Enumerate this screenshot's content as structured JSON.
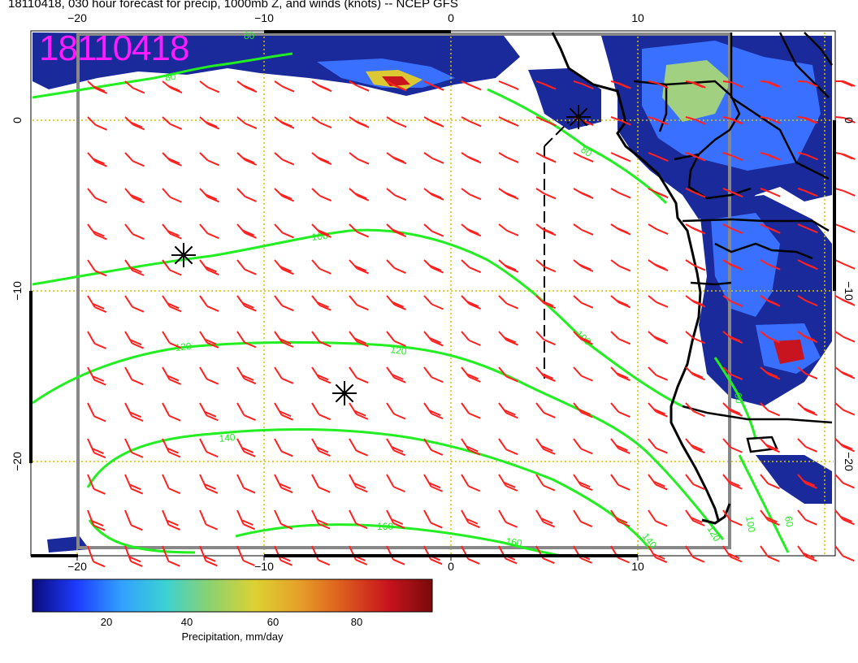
{
  "title": "18110418, 030 hour forecast for precip, 1000mb Z, and winds (knots) -- NCEP GFS",
  "date_stamp": "18110418",
  "map": {
    "lon_range": [
      -22.5,
      20.5
    ],
    "lat_range": [
      -25.5,
      5.2
    ],
    "lon_ticks": [
      -20,
      -10,
      0,
      10
    ],
    "lon_tick_labels": [
      "−20",
      "−10",
      "0",
      "10"
    ],
    "lat_ticks": [
      0,
      -10,
      -20
    ],
    "lat_tick_labels": [
      "0",
      "−10",
      "−20"
    ]
  },
  "height_contour_labels": [
    "80",
    "80",
    "100",
    "100",
    "120",
    "120",
    "140",
    "160",
    "160",
    "140",
    "120",
    "60",
    "100",
    "60"
  ],
  "height_contours_dam": [
    80,
    100,
    120,
    140,
    160
  ],
  "colorbar": {
    "ticks": [
      "20",
      "40",
      "60",
      "80"
    ],
    "title": "Precipitation, mm/day",
    "colors": [
      "#0a0a7a",
      "#1e3cff",
      "#32a0ff",
      "#3cd2d2",
      "#8cd26e",
      "#dcd232",
      "#e6a028",
      "#dc5a1e",
      "#c8141e",
      "#780a0a"
    ]
  },
  "colors": {
    "contour": "#22ee22",
    "wind_barb": "#ff2020",
    "coast": "#000000",
    "grid": "#d4c400",
    "frame": "#888888",
    "stamp": "#ff1aff"
  }
}
